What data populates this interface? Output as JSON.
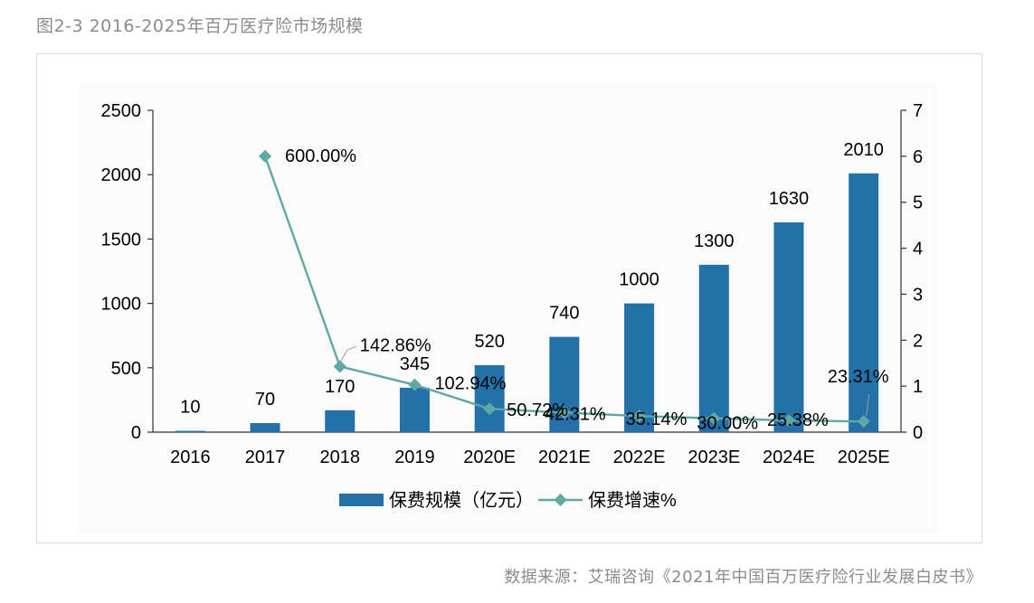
{
  "figure": {
    "title": "图2-3 2016-2025年百万医疗险市场规模",
    "source": "数据来源：艾瑞咨询《2021年中国百万医疗险行业发展白皮书》"
  },
  "colors": {
    "bar": "#2470a8",
    "line": "#5fa8a3",
    "axis": "#333333",
    "text": "#000000",
    "muted": "#8c8c8c"
  },
  "chart_data": {
    "type": "bar",
    "categories": [
      "2016",
      "2017",
      "2018",
      "2019",
      "2020E",
      "2021E",
      "2022E",
      "2023E",
      "2024E",
      "2025E"
    ],
    "series": [
      {
        "name": "保费规模（亿元）",
        "type": "bar",
        "axis": "left",
        "values": [
          10,
          70,
          170,
          345,
          520,
          740,
          1000,
          1300,
          1630,
          2010
        ],
        "labels": [
          "10",
          "70",
          "170",
          "345",
          "520",
          "740",
          "1000",
          "1300",
          "1630",
          "2010"
        ]
      },
      {
        "name": "保费增速%",
        "type": "line",
        "axis": "right",
        "values": [
          null,
          6.0,
          1.4286,
          1.0294,
          0.5072,
          0.4231,
          0.3514,
          0.3,
          0.2538,
          0.2331
        ],
        "labels": [
          null,
          "600.00%",
          "142.86%",
          "102.94%",
          "50.72%",
          "42.31%",
          "35.14%",
          "30.00%",
          "25.38%",
          "23.31%"
        ]
      }
    ],
    "y_left": {
      "lim": [
        0,
        2500
      ],
      "ticks": [
        "0",
        "500",
        "1000",
        "1500",
        "2000",
        "2500"
      ]
    },
    "y_right": {
      "lim": [
        0,
        7
      ],
      "ticks": [
        "0",
        "1",
        "2",
        "3",
        "4",
        "5",
        "6",
        "7"
      ]
    },
    "grid": false,
    "legend_position": "bottom"
  }
}
